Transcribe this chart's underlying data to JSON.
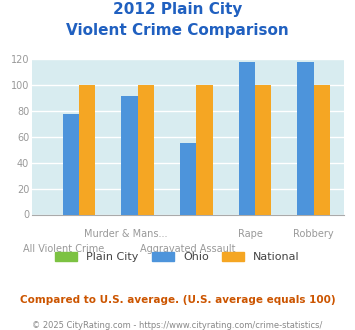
{
  "title_line1": "2012 Plain City",
  "title_line2": "Violent Crime Comparison",
  "cat_labels_top": [
    "",
    "Murder & Mans...",
    "",
    "Rape",
    "Robbery"
  ],
  "cat_labels_bot": [
    "All Violent Crime",
    "",
    "Aggravated Assault",
    "",
    ""
  ],
  "series": [
    {
      "name": "Plain City",
      "values": [
        0,
        0,
        0,
        0,
        0
      ],
      "color": "#7cc242"
    },
    {
      "name": "Ohio",
      "values": [
        78,
        92,
        55,
        118,
        118
      ],
      "color": "#4d94db"
    },
    {
      "name": "National",
      "values": [
        100,
        100,
        100,
        100,
        100
      ],
      "color": "#f5a623"
    }
  ],
  "ylim": [
    0,
    120
  ],
  "yticks": [
    0,
    20,
    40,
    60,
    80,
    100,
    120
  ],
  "plot_bg_color": "#d8ecf0",
  "title_color": "#2060c0",
  "tick_color": "#999999",
  "legend_label_color": "#444444",
  "footer_text": "Compared to U.S. average. (U.S. average equals 100)",
  "footer_color": "#cc5500",
  "copyright_text": "© 2025 CityRating.com - https://www.cityrating.com/crime-statistics/",
  "copyright_color": "#888888",
  "grid_color": "#ffffff",
  "bar_width": 0.28,
  "title_fontsize": 11,
  "axis_fontsize": 7,
  "legend_fontsize": 8,
  "footer_fontsize": 7.5,
  "copyright_fontsize": 6
}
